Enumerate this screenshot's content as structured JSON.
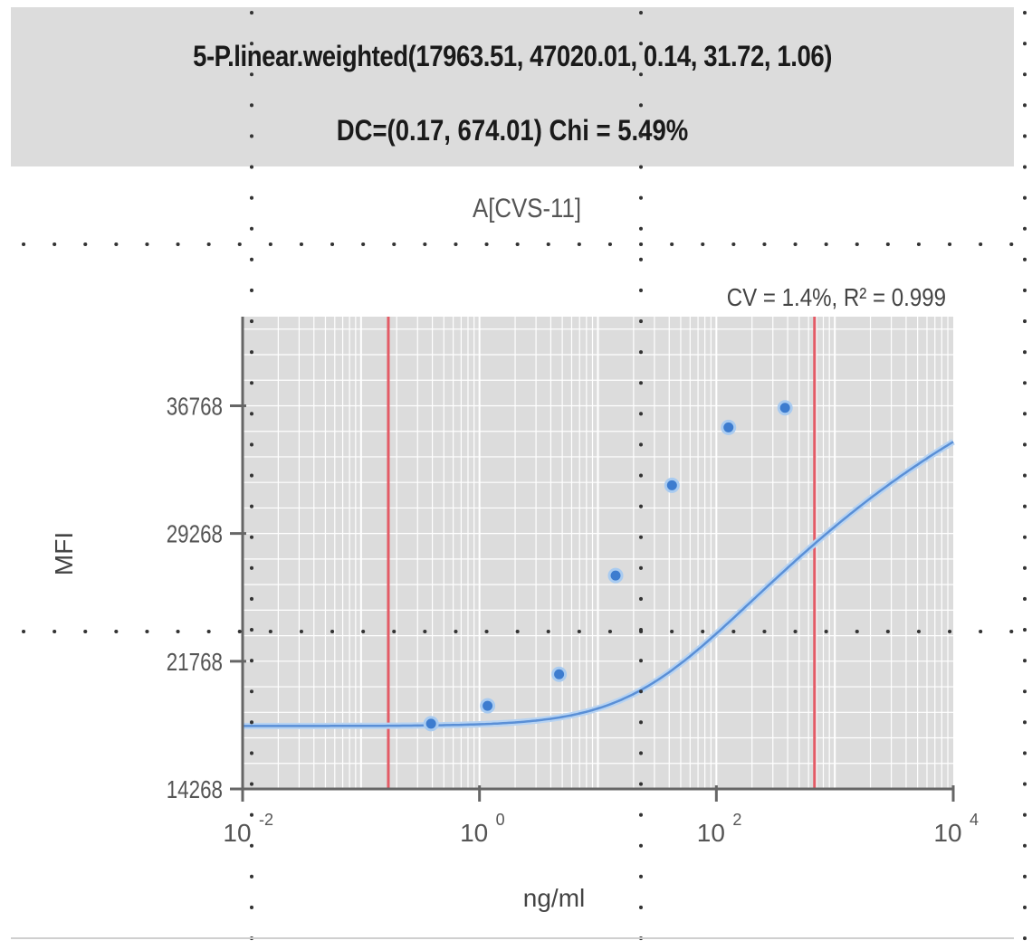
{
  "header": {
    "fit_equation": "5-P.linear.weighted(17963.51, 47020.01, 0.14, 31.72, 1.06)",
    "fit_stats": "DC=(0.17, 674.01) Chi = 5.49%"
  },
  "analyte": "A[CVS-11]",
  "colors": {
    "band": "#dcdcdc",
    "grid": "#ffffff",
    "curve": "#5a8fd6",
    "curve_halo": "#b7d3f2",
    "points": "#3d7ccf",
    "limit_lines": "#e35b66",
    "axis": "#666666",
    "dotted": "#333333"
  },
  "chart_data": {
    "type": "scatter",
    "title": "",
    "annotation": "CV = 1.4%,  R² = 0.999",
    "xlabel": "ng/ml",
    "ylabel": "MFI",
    "x_scale": "log",
    "xlim": [
      0.01,
      10000
    ],
    "ylim": [
      14268,
      42000
    ],
    "x_ticks": [
      {
        "value": 0.01,
        "base": "10",
        "exp": "-2"
      },
      {
        "value": 1,
        "base": "10",
        "exp": "0"
      },
      {
        "value": 100,
        "base": "10",
        "exp": "2"
      },
      {
        "value": 10000,
        "base": "10",
        "exp": "4"
      }
    ],
    "y_ticks": [
      14268,
      21768,
      29268,
      36768
    ],
    "y_tick_labels": [
      "14268",
      "21768",
      "29268",
      "36768"
    ],
    "grid": true,
    "fit_parameters": {
      "a": 17963.51,
      "d": 47020.01,
      "b": 1.06,
      "c": 31.72,
      "e": 0.14
    },
    "limit_lines_x": [
      0.17,
      674.01
    ],
    "series": [
      {
        "type": "scatter",
        "x": [
          0.39,
          1.17,
          4.7,
          14.1,
          42.2,
          126.6,
          380
        ],
        "y": [
          18100,
          19150,
          21000,
          26800,
          32100,
          35500,
          36650
        ]
      },
      {
        "type": "line",
        "curve": "5PL fit"
      }
    ]
  }
}
